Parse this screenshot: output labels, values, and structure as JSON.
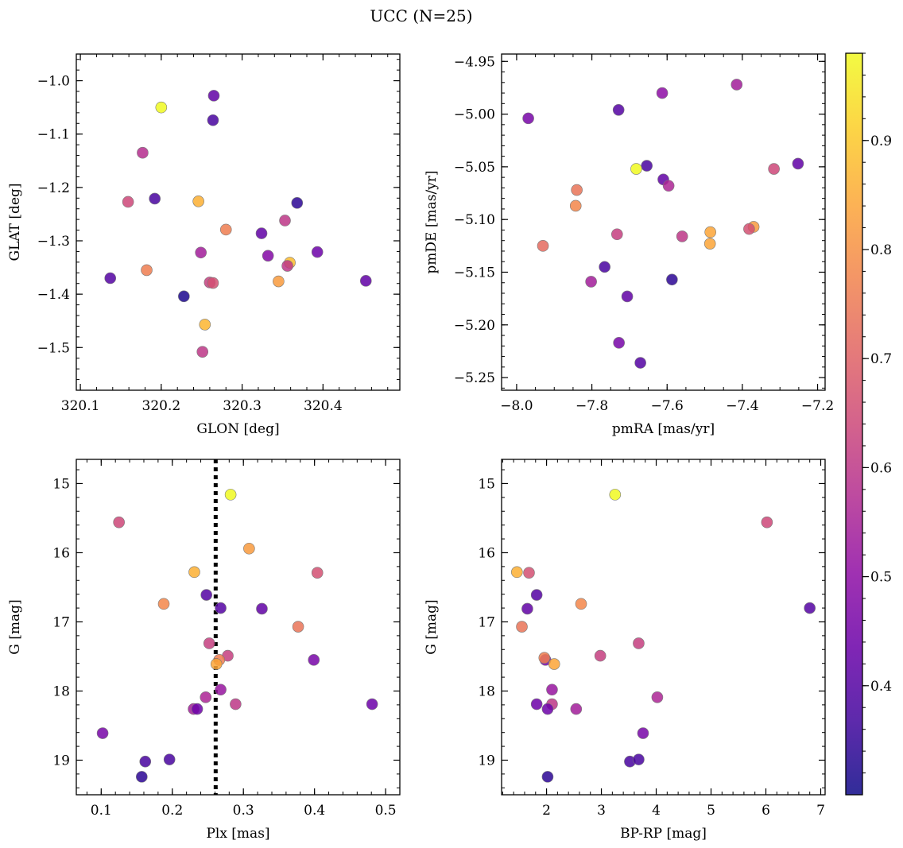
{
  "title": "UCC (N=25)",
  "colorbar": {
    "cmap": "plasma",
    "range": [
      0.3,
      0.98
    ],
    "ticks": [
      0.4,
      0.5,
      0.6,
      0.7,
      0.8,
      0.9
    ],
    "tick_labels": [
      "0.4",
      "0.5",
      "0.6",
      "0.7",
      "0.8",
      "0.9"
    ]
  },
  "chart_data": [
    {
      "type": "scatter",
      "id": "glon-glat",
      "xlabel": "GLON [deg]",
      "ylabel": "GLAT [deg]",
      "xlim": [
        320.095,
        320.495
      ],
      "ylim": [
        -1.58,
        -0.95
      ],
      "y_inverted": false,
      "xticks": [
        320.1,
        320.2,
        320.3,
        320.4
      ],
      "xtick_labels": [
        "320.1",
        "320.2",
        "320.3",
        "320.4"
      ],
      "xminor": 0.02,
      "yticks": [
        -1.0,
        -1.1,
        -1.2,
        -1.3,
        -1.4,
        -1.5
      ],
      "ytick_labels": [
        "−1.0",
        "−1.1",
        "−1.2",
        "−1.3",
        "−1.4",
        "−1.5"
      ],
      "yminor": 0.02,
      "x": [
        320.2,
        320.265,
        320.264,
        320.177,
        320.159,
        320.192,
        320.246,
        320.368,
        320.353,
        320.28,
        320.324,
        320.359,
        320.393,
        320.249,
        320.332,
        320.356,
        320.182,
        320.137,
        320.26,
        320.264,
        320.345,
        320.453,
        320.228,
        320.254,
        320.251
      ],
      "y": [
        -1.05,
        -1.028,
        -1.074,
        -1.135,
        -1.227,
        -1.221,
        -1.226,
        -1.229,
        -1.262,
        -1.279,
        -1.286,
        -1.341,
        -1.321,
        -1.322,
        -1.328,
        -1.347,
        -1.355,
        -1.37,
        -1.378,
        -1.379,
        -1.376,
        -1.375,
        -1.404,
        -1.457,
        -1.508
      ],
      "color_values": [
        0.98,
        0.42,
        0.38,
        0.58,
        0.64,
        0.38,
        0.86,
        0.34,
        0.6,
        0.76,
        0.42,
        0.88,
        0.44,
        0.54,
        0.48,
        0.6,
        0.76,
        0.4,
        0.62,
        0.66,
        0.82,
        0.42,
        0.32,
        0.87,
        0.6
      ]
    },
    {
      "type": "scatter",
      "id": "pmra-pmde",
      "xlabel": "pmRA [mas/yr]",
      "ylabel": "pmDE [mas/yr]",
      "xlim": [
        -8.04,
        -7.18
      ],
      "ylim": [
        -5.262,
        -4.943
      ],
      "y_inverted": false,
      "xticks": [
        -8.0,
        -7.8,
        -7.6,
        -7.4,
        -7.2
      ],
      "xtick_labels": [
        "−8.0",
        "−7.8",
        "−7.6",
        "−7.4",
        "−7.2"
      ],
      "xminor": 0.05,
      "yticks": [
        -4.95,
        -5.0,
        -5.05,
        -5.1,
        -5.15,
        -5.2,
        -5.25
      ],
      "ytick_labels": [
        "−4.95",
        "−5.00",
        "−5.05",
        "−5.10",
        "−5.15",
        "−5.20",
        "−5.25"
      ],
      "yminor": 0.01,
      "x": [
        -7.415,
        -7.613,
        -7.729,
        -7.969,
        -7.654,
        -7.252,
        -7.682,
        -7.316,
        -7.61,
        -7.596,
        -7.84,
        -7.843,
        -7.37,
        -7.382,
        -7.485,
        -7.486,
        -7.56,
        -7.733,
        -7.93,
        -7.766,
        -7.802,
        -7.587,
        -7.706,
        -7.728,
        -7.671
      ],
      "y": [
        -4.972,
        -4.98,
        -4.996,
        -5.004,
        -5.049,
        -5.047,
        -5.052,
        -5.052,
        -5.062,
        -5.068,
        -5.072,
        -5.087,
        -5.107,
        -5.109,
        -5.112,
        -5.123,
        -5.116,
        -5.114,
        -5.125,
        -5.145,
        -5.159,
        -5.157,
        -5.173,
        -5.217,
        -5.236
      ],
      "color_values": [
        0.54,
        0.5,
        0.4,
        0.46,
        0.38,
        0.42,
        0.98,
        0.64,
        0.42,
        0.56,
        0.74,
        0.78,
        0.82,
        0.66,
        0.84,
        0.84,
        0.6,
        0.62,
        0.72,
        0.38,
        0.54,
        0.34,
        0.42,
        0.46,
        0.4
      ]
    },
    {
      "type": "scatter",
      "id": "plx-g",
      "xlabel": "Plx [mas]",
      "ylabel": "G [mag]",
      "xlim": [
        0.065,
        0.52
      ],
      "ylim": [
        19.5,
        14.65
      ],
      "y_inverted": true,
      "xticks": [
        0.1,
        0.2,
        0.3,
        0.4,
        0.5
      ],
      "xtick_labels": [
        "0.1",
        "0.2",
        "0.3",
        "0.4",
        "0.5"
      ],
      "xminor": 0.02,
      "yticks": [
        15,
        16,
        17,
        18,
        19
      ],
      "ytick_labels": [
        "15",
        "16",
        "17",
        "18",
        "19"
      ],
      "yminor": 0.2,
      "vline": 0.261,
      "x": [
        0.282,
        0.125,
        0.308,
        0.231,
        0.404,
        0.248,
        0.188,
        0.268,
        0.326,
        0.377,
        0.252,
        0.278,
        0.399,
        0.266,
        0.262,
        0.268,
        0.247,
        0.289,
        0.23,
        0.235,
        0.481,
        0.102,
        0.196,
        0.162,
        0.157
      ],
      "y": [
        15.16,
        15.56,
        15.94,
        16.28,
        16.29,
        16.61,
        16.74,
        16.8,
        16.81,
        17.07,
        17.31,
        17.49,
        17.55,
        17.55,
        17.61,
        17.98,
        18.09,
        18.19,
        18.26,
        18.26,
        18.19,
        18.61,
        18.99,
        19.02,
        19.24
      ],
      "color_values": [
        0.98,
        0.64,
        0.82,
        0.86,
        0.66,
        0.4,
        0.78,
        0.4,
        0.42,
        0.74,
        0.62,
        0.62,
        0.46,
        0.76,
        0.84,
        0.52,
        0.56,
        0.6,
        0.54,
        0.44,
        0.44,
        0.46,
        0.38,
        0.38,
        0.34
      ]
    },
    {
      "type": "scatter",
      "id": "bprp-g",
      "xlabel": "BP-RP [mag]",
      "ylabel": "G [mag]",
      "xlim": [
        1.18,
        7.08
      ],
      "ylim": [
        19.5,
        14.65
      ],
      "y_inverted": true,
      "xticks": [
        2,
        3,
        4,
        5,
        6,
        7
      ],
      "xtick_labels": [
        "2",
        "3",
        "4",
        "5",
        "6",
        "7"
      ],
      "xminor": 0.2,
      "yticks": [
        15,
        16,
        17,
        18,
        19
      ],
      "ytick_labels": [
        "15",
        "16",
        "17",
        "18",
        "19"
      ],
      "yminor": 0.2,
      "x": [
        3.25,
        6.02,
        1.46,
        1.68,
        1.82,
        2.63,
        1.65,
        6.8,
        1.55,
        3.68,
        2.98,
        1.98,
        1.96,
        2.14,
        2.1,
        4.02,
        1.82,
        2.1,
        2.02,
        2.54,
        3.76,
        3.52,
        3.68,
        2.02
      ],
      "y": [
        15.16,
        15.56,
        16.28,
        16.29,
        16.61,
        16.74,
        16.81,
        16.8,
        17.07,
        17.31,
        17.49,
        17.55,
        17.52,
        17.61,
        17.98,
        18.09,
        18.19,
        18.19,
        18.26,
        18.26,
        18.61,
        19.02,
        18.99,
        19.24
      ],
      "color_values": [
        0.98,
        0.64,
        0.86,
        0.66,
        0.4,
        0.78,
        0.42,
        0.4,
        0.74,
        0.62,
        0.62,
        0.46,
        0.76,
        0.84,
        0.52,
        0.56,
        0.44,
        0.6,
        0.44,
        0.54,
        0.46,
        0.38,
        0.38,
        0.34
      ]
    }
  ]
}
